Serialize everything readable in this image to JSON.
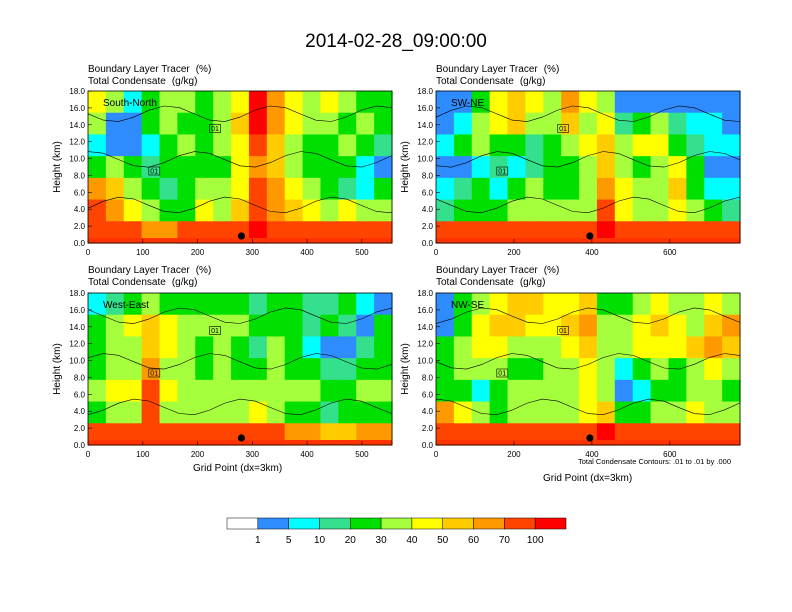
{
  "title": "2014-02-28_09:00:00",
  "header": {
    "line1": "Boundary Layer Tracer",
    "line1_unit": "(%)",
    "line2": "Total Condensate",
    "line2_unit": "(g/kg)"
  },
  "ylabel": "Height (km)",
  "xlabel": "Grid Point (dx=3km)",
  "contour_note": "Total Condensate Contours: .01 to .01 by .000",
  "contour_label": "01",
  "colorbar": {
    "levels": [
      "1",
      "5",
      "10",
      "20",
      "30",
      "40",
      "50",
      "60",
      "70",
      "100"
    ],
    "colors": [
      "#ffffff",
      "#2f8cff",
      "#00ffff",
      "#35e08c",
      "#00e000",
      "#a6ff3c",
      "#ffff00",
      "#ffcc00",
      "#ff9900",
      "#ff4400",
      "#ff0000"
    ]
  },
  "chart_data": [
    {
      "type": "heatmap",
      "panel_label": "South-North",
      "title": "Boundary Layer Tracer (%) / Total Condensate (g/kg)",
      "xlabel": "",
      "ylabel": "Height (km)",
      "xlim": [
        0,
        555
      ],
      "ylim": [
        0,
        18
      ],
      "xticks": [
        "0",
        "100",
        "200",
        "300",
        "400",
        "500"
      ],
      "yticks": [
        "0.0",
        "2.0",
        "4.0",
        "6.0",
        "8.0",
        "10.0",
        "12.0",
        "14.0",
        "16.0",
        "18.0"
      ],
      "marker_x": 280,
      "field": [
        [
          40,
          30,
          5,
          25,
          30,
          30,
          20,
          30,
          40,
          100,
          60,
          40,
          30,
          40,
          30,
          25,
          20
        ],
        [
          30,
          1,
          1,
          20,
          30,
          20,
          25,
          30,
          50,
          100,
          60,
          40,
          30,
          30,
          25,
          30,
          25
        ],
        [
          5,
          1,
          1,
          5,
          20,
          30,
          20,
          30,
          40,
          70,
          50,
          35,
          20,
          20,
          30,
          20,
          10
        ],
        [
          20,
          30,
          20,
          10,
          20,
          25,
          20,
          25,
          40,
          60,
          50,
          30,
          20,
          25,
          20,
          5,
          1
        ],
        [
          60,
          50,
          30,
          20,
          10,
          20,
          30,
          30,
          40,
          70,
          60,
          40,
          30,
          20,
          10,
          5,
          20
        ],
        [
          70,
          60,
          40,
          30,
          20,
          25,
          40,
          30,
          50,
          90,
          60,
          50,
          40,
          30,
          40,
          30,
          30
        ],
        [
          90,
          80,
          70,
          60,
          60,
          70,
          80,
          80,
          80,
          100,
          90,
          80,
          70,
          70,
          80,
          90,
          80
        ]
      ]
    },
    {
      "type": "heatmap",
      "panel_label": "SW-NE",
      "title": "Boundary Layer Tracer (%) / Total Condensate (g/kg)",
      "xlabel": "",
      "ylabel": "Height (km)",
      "xlim": [
        0,
        780
      ],
      "ylim": [
        0,
        18
      ],
      "xticks": [
        "0",
        "200",
        "400",
        "600"
      ],
      "yticks": [
        "0.0",
        "2.0",
        "4.0",
        "6.0",
        "8.0",
        "10.0",
        "12.0",
        "14.0",
        "16.0",
        "18.0"
      ],
      "marker_x": 395,
      "field": [
        [
          1,
          1,
          20,
          40,
          50,
          40,
          30,
          60,
          40,
          30,
          1,
          1,
          1,
          1,
          1,
          1,
          1
        ],
        [
          1,
          5,
          30,
          40,
          50,
          30,
          30,
          50,
          30,
          40,
          10,
          20,
          30,
          10,
          5,
          5,
          1
        ],
        [
          5,
          20,
          30,
          20,
          20,
          10,
          20,
          30,
          40,
          50,
          30,
          40,
          40,
          20,
          10,
          5,
          5
        ],
        [
          1,
          1,
          5,
          10,
          5,
          10,
          20,
          20,
          30,
          50,
          30,
          20,
          30,
          40,
          20,
          1,
          1
        ],
        [
          5,
          10,
          20,
          5,
          20,
          30,
          20,
          20,
          30,
          60,
          40,
          30,
          30,
          50,
          20,
          5,
          5
        ],
        [
          10,
          20,
          20,
          20,
          30,
          30,
          30,
          30,
          30,
          70,
          40,
          30,
          30,
          40,
          30,
          20,
          10
        ],
        [
          90,
          80,
          70,
          70,
          70,
          80,
          70,
          80,
          90,
          100,
          90,
          80,
          80,
          80,
          80,
          70,
          70
        ]
      ]
    },
    {
      "type": "heatmap",
      "panel_label": "West-East",
      "title": "Boundary Layer Tracer (%) / Total Condensate (g/kg)",
      "xlabel": "Grid Point (dx=3km)",
      "ylabel": "Height (km)",
      "xlim": [
        0,
        555
      ],
      "ylim": [
        0,
        18
      ],
      "xticks": [
        "0",
        "100",
        "200",
        "300",
        "400",
        "500"
      ],
      "yticks": [
        "0.0",
        "2.0",
        "4.0",
        "6.0",
        "8.0",
        "10.0",
        "12.0",
        "14.0",
        "16.0",
        "18.0"
      ],
      "marker_x": 280,
      "field": [
        [
          5,
          10,
          20,
          30,
          20,
          20,
          20,
          20,
          20,
          10,
          20,
          20,
          10,
          10,
          20,
          5,
          1
        ],
        [
          20,
          30,
          40,
          50,
          40,
          30,
          30,
          30,
          30,
          20,
          20,
          20,
          10,
          20,
          10,
          1,
          20
        ],
        [
          20,
          30,
          30,
          50,
          40,
          30,
          20,
          30,
          20,
          10,
          30,
          20,
          5,
          1,
          1,
          10,
          20
        ],
        [
          20,
          30,
          30,
          60,
          30,
          30,
          20,
          30,
          20,
          20,
          30,
          20,
          20,
          10,
          10,
          20,
          20
        ],
        [
          30,
          40,
          40,
          70,
          40,
          30,
          30,
          30,
          30,
          30,
          30,
          30,
          30,
          20,
          20,
          30,
          30
        ],
        [
          20,
          30,
          30,
          70,
          30,
          30,
          30,
          30,
          30,
          40,
          30,
          20,
          20,
          10,
          20,
          20,
          20
        ],
        [
          80,
          70,
          70,
          90,
          70,
          70,
          80,
          70,
          70,
          80,
          70,
          60,
          60,
          50,
          50,
          60,
          60
        ]
      ]
    },
    {
      "type": "heatmap",
      "panel_label": "NW-SE",
      "title": "Boundary Layer Tracer (%) / Total Condensate (g/kg)",
      "xlabel": "Grid Point (dx=3km)",
      "ylabel": "Height (km)",
      "xlim": [
        0,
        780
      ],
      "ylim": [
        0,
        18
      ],
      "xticks": [
        "0",
        "200",
        "400",
        "600"
      ],
      "yticks": [
        "0.0",
        "2.0",
        "4.0",
        "6.0",
        "8.0",
        "10.0",
        "12.0",
        "14.0",
        "16.0",
        "18.0"
      ],
      "marker_x": 395,
      "field": [
        [
          1,
          20,
          30,
          40,
          50,
          50,
          40,
          40,
          50,
          20,
          20,
          30,
          40,
          30,
          30,
          40,
          30
        ],
        [
          1,
          20,
          40,
          50,
          50,
          40,
          40,
          50,
          60,
          30,
          30,
          40,
          50,
          40,
          30,
          50,
          60
        ],
        [
          20,
          30,
          40,
          40,
          30,
          30,
          30,
          40,
          50,
          30,
          30,
          40,
          40,
          40,
          50,
          60,
          50
        ],
        [
          20,
          30,
          30,
          30,
          20,
          20,
          30,
          30,
          40,
          30,
          5,
          20,
          30,
          20,
          30,
          40,
          30
        ],
        [
          20,
          20,
          5,
          20,
          30,
          30,
          30,
          30,
          40,
          30,
          1,
          5,
          20,
          20,
          30,
          30,
          20
        ],
        [
          60,
          40,
          30,
          20,
          30,
          30,
          30,
          30,
          40,
          50,
          20,
          20,
          30,
          30,
          40,
          30,
          30
        ],
        [
          90,
          80,
          80,
          80,
          80,
          80,
          80,
          80,
          90,
          100,
          90,
          80,
          80,
          80,
          80,
          80,
          80
        ]
      ]
    }
  ]
}
